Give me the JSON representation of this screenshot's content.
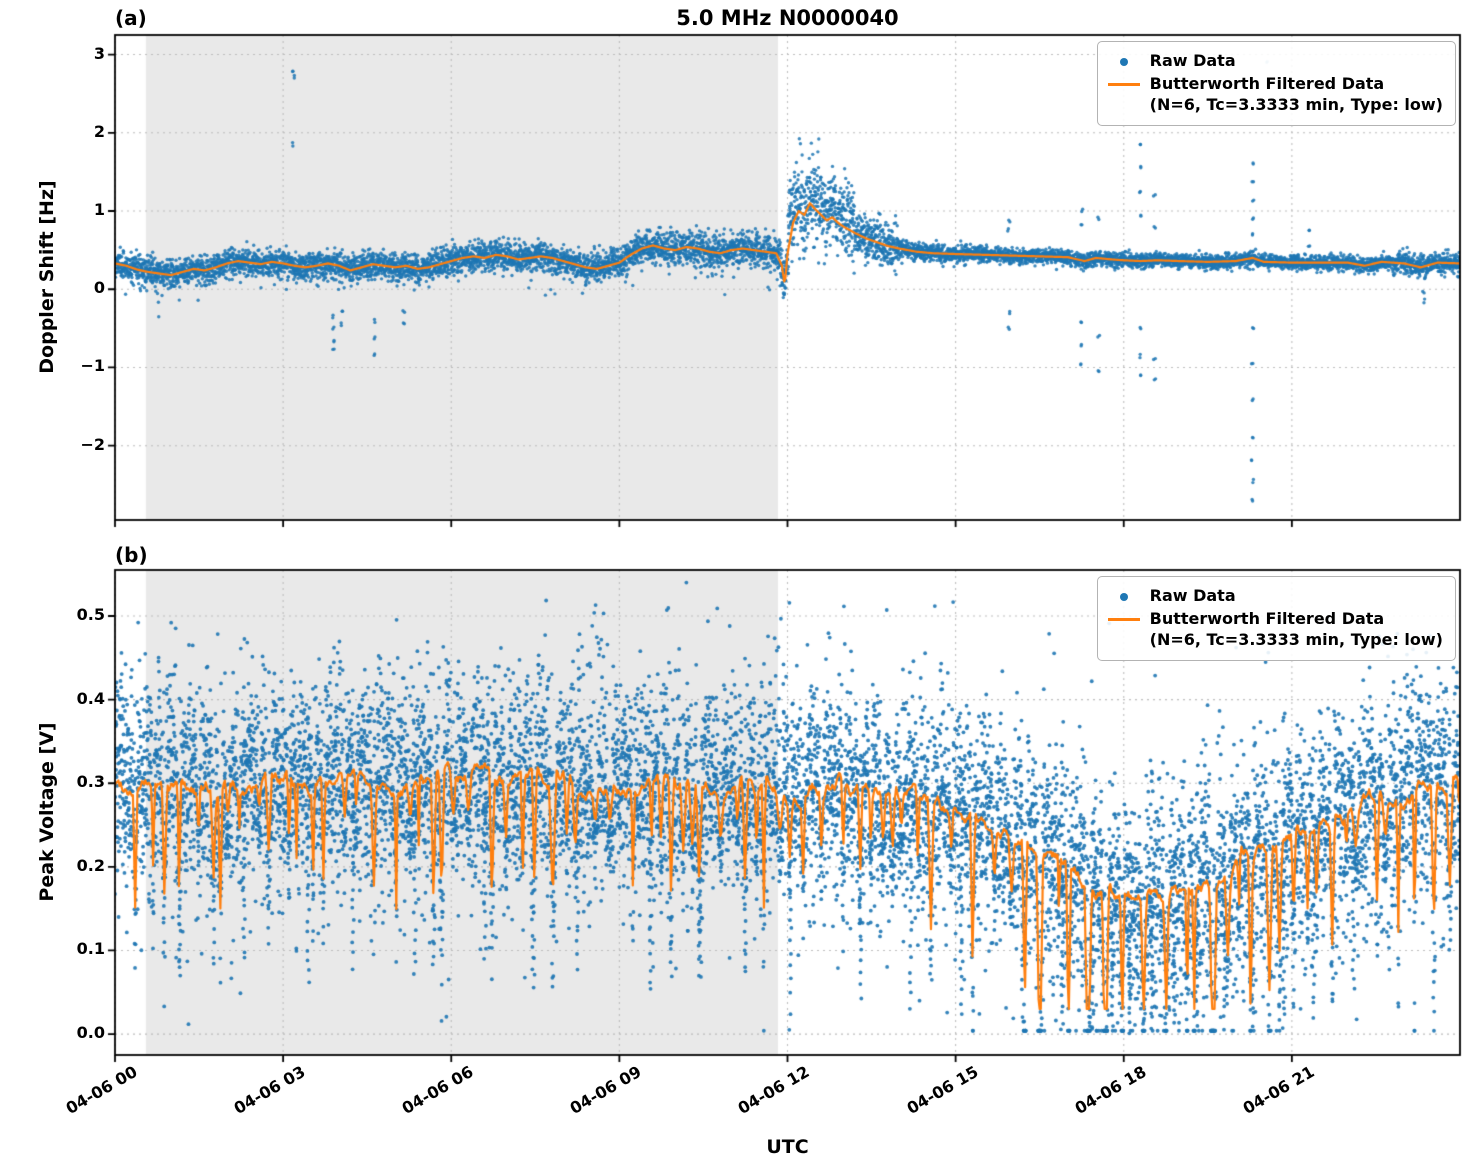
{
  "title": "5.0 MHz N0000040",
  "panel_a_tag": "(a)",
  "panel_b_tag": "(b)",
  "xlabel": "UTC",
  "colors": {
    "raw": "#1f77b4",
    "filtered": "#ff7f0e",
    "shade": "#e9e9e9",
    "grid": "#bdbdbd",
    "spine": "#000000"
  },
  "legend": {
    "raw_label": "Raw Data",
    "filtered_label": "Butterworth Filtered Data",
    "filtered_sublabel": "(N=6, Tc=3.3333 min, Type: low)"
  },
  "chart_data": [
    {
      "type": "scatter",
      "panel": "a",
      "title": "5.0 MHz N0000040",
      "ylabel": "Doppler Shift [Hz]",
      "xlabel": "UTC",
      "xlim_hours": [
        0,
        24
      ],
      "ylim": [
        -2.95,
        3.25
      ],
      "yticks": [
        3,
        2,
        1,
        0,
        -1,
        -2
      ],
      "ytick_labels": [
        "3",
        "2",
        "1",
        "0",
        "−1",
        "−2"
      ],
      "xtick_hours": [
        0,
        3,
        6,
        9,
        12,
        15,
        18,
        21
      ],
      "xtick_labels": [
        "04-06 00",
        "04-06 03",
        "04-06 06",
        "04-06 09",
        "04-06 12",
        "04-06 15",
        "04-06 18",
        "04-06 21"
      ],
      "grid": true,
      "legend_position": "upper right",
      "shaded_region_hours": [
        0.55,
        11.83
      ],
      "series": [
        {
          "name": "Raw Data",
          "type": "scatter",
          "color": "#1f77b4",
          "noise_sigma_segments": [
            {
              "range": [
                0,
                9.0
              ],
              "sigma": 0.09
            },
            {
              "range": [
                9.0,
                11.85
              ],
              "sigma": 0.11
            },
            {
              "range": [
                11.85,
                12.0
              ],
              "sigma": 0.18
            },
            {
              "range": [
                12.0,
                12.6
              ],
              "sigma": 0.3
            },
            {
              "range": [
                12.6,
                13.2
              ],
              "sigma": 0.22
            },
            {
              "range": [
                13.2,
                14.0
              ],
              "sigma": 0.13
            },
            {
              "range": [
                14.0,
                15.5
              ],
              "sigma": 0.055
            },
            {
              "range": [
                15.5,
                22.8
              ],
              "sigma": 0.045
            },
            {
              "range": [
                22.8,
                24.0
              ],
              "sigma": 0.07
            }
          ],
          "outlier_events": [
            {
              "hour": 3.18,
              "values": [
                1.85,
                2.72,
                2.78
              ]
            },
            {
              "hour": 3.9,
              "values": [
                -0.35,
                -0.5,
                -0.65,
                -0.78
              ]
            },
            {
              "hour": 4.05,
              "values": [
                -0.3,
                -0.45
              ]
            },
            {
              "hour": 4.62,
              "values": [
                -0.4,
                -0.62,
                -0.85
              ]
            },
            {
              "hour": 5.15,
              "values": [
                -0.3,
                -0.45
              ]
            },
            {
              "hour": 11.92,
              "values": [
                0.15,
                0.05,
                -0.05
              ]
            },
            {
              "hour": 15.95,
              "values": [
                0.75,
                0.88,
                -0.3,
                -0.5
              ]
            },
            {
              "hour": 17.25,
              "values": [
                1.0,
                0.8,
                -0.4,
                -0.7,
                -0.95
              ]
            },
            {
              "hour": 17.55,
              "values": [
                0.9,
                -0.6,
                -1.05
              ]
            },
            {
              "hour": 18.3,
              "values": [
                1.85,
                1.55,
                1.25,
                0.95,
                -0.5,
                -0.85,
                -1.1
              ]
            },
            {
              "hour": 18.55,
              "values": [
                1.2,
                0.8,
                -0.9,
                -1.15
              ]
            },
            {
              "hour": 20.3,
              "values": [
                1.6,
                1.38,
                1.15,
                0.92,
                0.7,
                -0.5,
                -0.95,
                -1.42,
                -1.9,
                -2.2,
                -2.45,
                -2.7
              ]
            },
            {
              "hour": 20.55,
              "values": [
                2.9
              ],
              "faint": true
            },
            {
              "hour": 21.3,
              "values": [
                0.75,
                0.55
              ]
            },
            {
              "hour": 23.35,
              "values": [
                -0.15,
                -0.05
              ]
            }
          ]
        },
        {
          "name": "Butterworth Filtered Data (N=6, Tc=3.3333 min, Type: low)",
          "type": "line",
          "color": "#ff7f0e",
          "points_hour_value": [
            [
              0,
              0.33
            ],
            [
              0.2,
              0.3
            ],
            [
              0.4,
              0.25
            ],
            [
              0.6,
              0.22
            ],
            [
              0.8,
              0.2
            ],
            [
              1,
              0.18
            ],
            [
              1.2,
              0.22
            ],
            [
              1.4,
              0.26
            ],
            [
              1.6,
              0.24
            ],
            [
              1.8,
              0.28
            ],
            [
              2,
              0.33
            ],
            [
              2.2,
              0.36
            ],
            [
              2.4,
              0.34
            ],
            [
              2.6,
              0.32
            ],
            [
              2.8,
              0.35
            ],
            [
              3,
              0.33
            ],
            [
              3.2,
              0.3
            ],
            [
              3.4,
              0.28
            ],
            [
              3.6,
              0.3
            ],
            [
              3.8,
              0.33
            ],
            [
              4,
              0.3
            ],
            [
              4.2,
              0.24
            ],
            [
              4.4,
              0.28
            ],
            [
              4.6,
              0.32
            ],
            [
              4.8,
              0.3
            ],
            [
              5,
              0.28
            ],
            [
              5.2,
              0.3
            ],
            [
              5.4,
              0.26
            ],
            [
              5.6,
              0.28
            ],
            [
              5.8,
              0.32
            ],
            [
              6,
              0.36
            ],
            [
              6.2,
              0.4
            ],
            [
              6.4,
              0.42
            ],
            [
              6.6,
              0.4
            ],
            [
              6.8,
              0.44
            ],
            [
              7,
              0.42
            ],
            [
              7.2,
              0.38
            ],
            [
              7.4,
              0.4
            ],
            [
              7.6,
              0.42
            ],
            [
              7.8,
              0.4
            ],
            [
              8,
              0.36
            ],
            [
              8.2,
              0.32
            ],
            [
              8.4,
              0.28
            ],
            [
              8.6,
              0.26
            ],
            [
              8.8,
              0.3
            ],
            [
              9,
              0.34
            ],
            [
              9.2,
              0.44
            ],
            [
              9.4,
              0.52
            ],
            [
              9.6,
              0.56
            ],
            [
              9.8,
              0.52
            ],
            [
              10,
              0.5
            ],
            [
              10.2,
              0.54
            ],
            [
              10.4,
              0.52
            ],
            [
              10.6,
              0.48
            ],
            [
              10.8,
              0.46
            ],
            [
              11,
              0.5
            ],
            [
              11.2,
              0.52
            ],
            [
              11.4,
              0.5
            ],
            [
              11.6,
              0.48
            ],
            [
              11.8,
              0.46
            ],
            [
              11.9,
              0.3
            ],
            [
              11.95,
              0.05
            ],
            [
              12,
              0.45
            ],
            [
              12.1,
              0.85
            ],
            [
              12.2,
              1.0
            ],
            [
              12.3,
              0.95
            ],
            [
              12.4,
              1.1
            ],
            [
              12.5,
              1.02
            ],
            [
              12.6,
              0.95
            ],
            [
              12.7,
              0.88
            ],
            [
              12.8,
              0.92
            ],
            [
              12.9,
              0.85
            ],
            [
              13,
              0.8
            ],
            [
              13.2,
              0.72
            ],
            [
              13.4,
              0.65
            ],
            [
              13.6,
              0.6
            ],
            [
              13.8,
              0.55
            ],
            [
              14,
              0.52
            ],
            [
              14.3,
              0.48
            ],
            [
              14.6,
              0.46
            ],
            [
              15,
              0.45
            ],
            [
              15.5,
              0.44
            ],
            [
              16,
              0.43
            ],
            [
              16.5,
              0.42
            ],
            [
              17,
              0.41
            ],
            [
              17.3,
              0.36
            ],
            [
              17.5,
              0.4
            ],
            [
              17.8,
              0.38
            ],
            [
              18,
              0.37
            ],
            [
              18.3,
              0.36
            ],
            [
              18.6,
              0.37
            ],
            [
              19,
              0.36
            ],
            [
              19.5,
              0.35
            ],
            [
              20,
              0.36
            ],
            [
              20.3,
              0.4
            ],
            [
              20.5,
              0.35
            ],
            [
              21,
              0.34
            ],
            [
              21.5,
              0.34
            ],
            [
              22,
              0.34
            ],
            [
              22.3,
              0.3
            ],
            [
              22.6,
              0.35
            ],
            [
              23,
              0.33
            ],
            [
              23.3,
              0.28
            ],
            [
              23.6,
              0.34
            ],
            [
              24,
              0.33
            ]
          ]
        }
      ]
    },
    {
      "type": "scatter",
      "panel": "b",
      "ylabel": "Peak Voltage [V]",
      "xlabel": "UTC",
      "xlim_hours": [
        0,
        24
      ],
      "ylim": [
        -0.025,
        0.555
      ],
      "yticks": [
        0.0,
        0.1,
        0.2,
        0.3,
        0.4,
        0.5
      ],
      "ytick_labels": [
        "0.0",
        "0.1",
        "0.2",
        "0.3",
        "0.4",
        "0.5"
      ],
      "xtick_hours": [
        0,
        3,
        6,
        9,
        12,
        15,
        18,
        21
      ],
      "xtick_labels": [
        "04-06 00",
        "04-06 03",
        "04-06 06",
        "04-06 09",
        "04-06 12",
        "04-06 15",
        "04-06 18",
        "04-06 21"
      ],
      "grid": true,
      "legend_position": "upper right",
      "shaded_region_hours": [
        0.55,
        11.83
      ],
      "series": [
        {
          "name": "Raw Data",
          "type": "scatter",
          "color": "#1f77b4",
          "band_sigma": 0.05,
          "deep_columns": [
            {
              "hour": 1.15,
              "min": 0.07
            },
            {
              "hour": 2.3,
              "min": 0.09
            },
            {
              "hour": 3.45,
              "min": 0.06
            },
            {
              "hour": 4.25,
              "min": 0.08
            },
            {
              "hour": 5.35,
              "min": 0.07
            },
            {
              "hour": 6.6,
              "min": 0.09
            },
            {
              "hour": 7.45,
              "min": 0.06
            },
            {
              "hour": 8.25,
              "min": 0.08
            },
            {
              "hour": 9.55,
              "min": 0.05
            },
            {
              "hour": 10.45,
              "min": 0.07
            },
            {
              "hour": 11.25,
              "min": 0.08
            },
            {
              "hour": 12.05,
              "min": 0.01
            },
            {
              "hour": 13.3,
              "min": 0.04
            },
            {
              "hour": 14.2,
              "min": 0.03
            },
            {
              "hour": 15.1,
              "min": 0.02
            },
            {
              "hour": 16.2,
              "min": 0.01
            },
            {
              "hour": 16.9,
              "min": 0.01
            },
            {
              "hour": 17.45,
              "min": 0.01
            },
            {
              "hour": 17.8,
              "min": 0.01
            },
            {
              "hour": 18.1,
              "min": 0.005
            },
            {
              "hour": 18.5,
              "min": 0.01
            },
            {
              "hour": 18.9,
              "min": 0.01
            },
            {
              "hour": 19.3,
              "min": 0.01
            },
            {
              "hour": 19.8,
              "min": 0.01
            },
            {
              "hour": 20.3,
              "min": 0.01
            },
            {
              "hour": 20.85,
              "min": 0.01
            },
            {
              "hour": 21.4,
              "min": 0.02
            },
            {
              "hour": 22.1,
              "min": 0.05
            }
          ]
        },
        {
          "name": "Butterworth Filtered Data (N=6, Tc=3.3333 min, Type: low)",
          "type": "line",
          "color": "#ff7f0e",
          "baseline_hour_value": [
            [
              0,
              0.3
            ],
            [
              1,
              0.295
            ],
            [
              2,
              0.29
            ],
            [
              3,
              0.3
            ],
            [
              4,
              0.305
            ],
            [
              5,
              0.3
            ],
            [
              6,
              0.31
            ],
            [
              7,
              0.305
            ],
            [
              8,
              0.3
            ],
            [
              9,
              0.3
            ],
            [
              10,
              0.295
            ],
            [
              11,
              0.3
            ],
            [
              12,
              0.29
            ],
            [
              12.5,
              0.3
            ],
            [
              13,
              0.295
            ],
            [
              13.5,
              0.285
            ],
            [
              14,
              0.28
            ],
            [
              14.5,
              0.275
            ],
            [
              15,
              0.27
            ],
            [
              15.5,
              0.255
            ],
            [
              16,
              0.24
            ],
            [
              16.5,
              0.22
            ],
            [
              17,
              0.2
            ],
            [
              17.5,
              0.175
            ],
            [
              18,
              0.155
            ],
            [
              18.5,
              0.16
            ],
            [
              19,
              0.17
            ],
            [
              19.5,
              0.18
            ],
            [
              20,
              0.2
            ],
            [
              20.5,
              0.215
            ],
            [
              21,
              0.235
            ],
            [
              21.5,
              0.25
            ],
            [
              22,
              0.265
            ],
            [
              22.5,
              0.28
            ],
            [
              23,
              0.29
            ],
            [
              23.5,
              0.3
            ],
            [
              24,
              0.31
            ]
          ],
          "dip_params": {
            "interval_min": 0.12,
            "interval_max": 0.42,
            "width_min": 0.04,
            "width_max": 0.13,
            "depth_min": 0.03,
            "depth_max": 0.16
          }
        }
      ]
    }
  ]
}
